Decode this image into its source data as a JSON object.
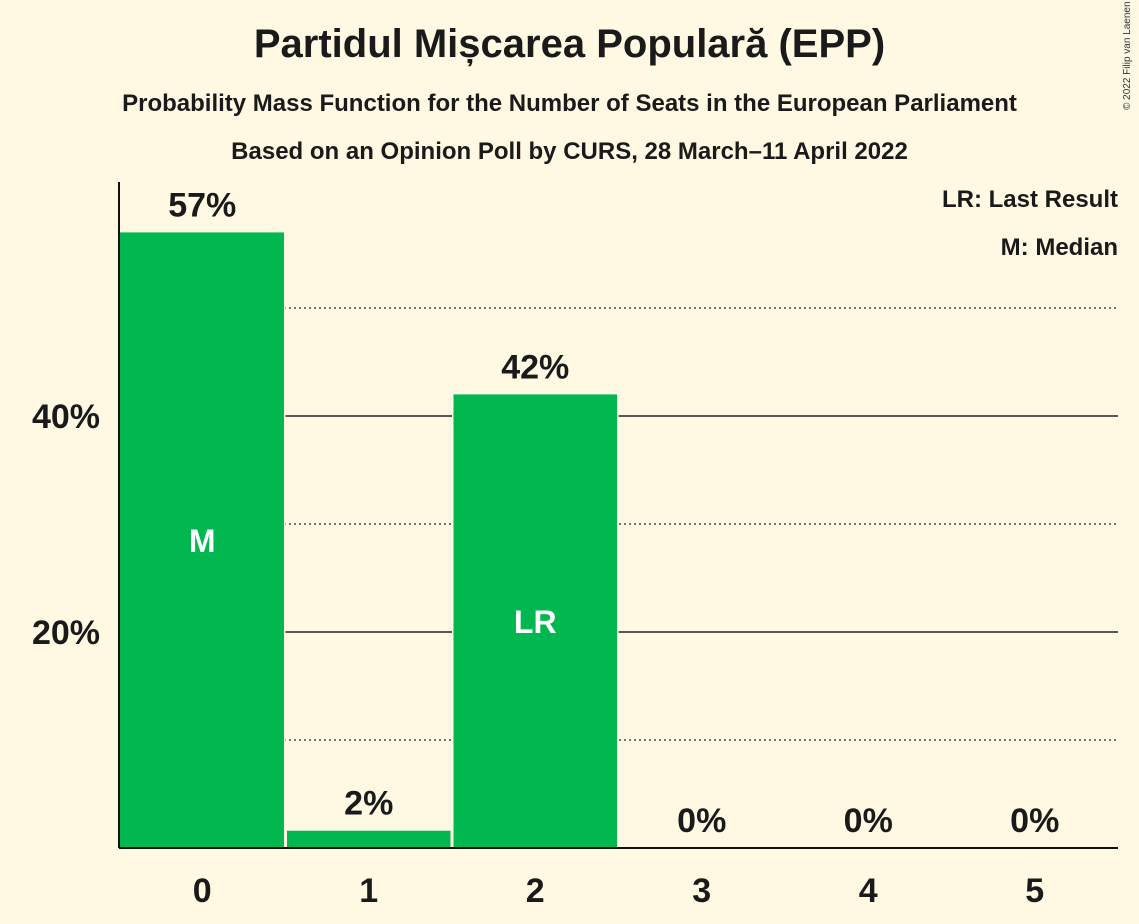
{
  "title": "Partidul Mișcarea Populară (EPP)",
  "subtitle": "Probability Mass Function for the Number of Seats in the European Parliament",
  "subtitle2": "Based on an Opinion Poll by CURS, 28 March–11 April 2022",
  "copyright": "© 2022 Filip van Laenen",
  "legend": {
    "last_result": "LR: Last Result",
    "median": "M: Median"
  },
  "colors": {
    "bar": "#00b84f",
    "background": "#fff9e3"
  },
  "chart_data": {
    "type": "bar",
    "categories": [
      "0",
      "1",
      "2",
      "3",
      "4",
      "5"
    ],
    "values": [
      57,
      1.6,
      42,
      0,
      0,
      0
    ],
    "value_labels": [
      "57%",
      "2%",
      "42%",
      "0%",
      "0%",
      "0%"
    ],
    "bar_markers": [
      "M",
      "",
      "LR",
      "",
      "",
      ""
    ],
    "ylim": [
      0,
      62
    ],
    "yticks": [
      {
        "value": 20,
        "label": "20%"
      },
      {
        "value": 40,
        "label": "40%"
      }
    ],
    "gridlines_solid": [
      20,
      40
    ],
    "gridlines_dotted": [
      10,
      30,
      50
    ],
    "xlabel": "",
    "ylabel": ""
  }
}
